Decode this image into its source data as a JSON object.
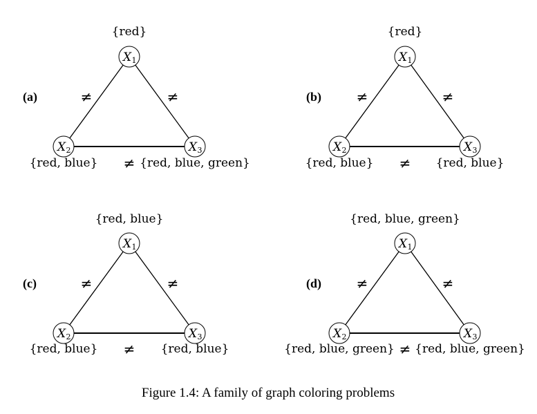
{
  "panels": [
    {
      "letter": "(a)",
      "nodes": [
        {
          "name": "X",
          "sub": "1",
          "domain": "{red}"
        },
        {
          "name": "X",
          "sub": "2",
          "domain": "{red, blue}"
        },
        {
          "name": "X",
          "sub": "3",
          "domain": "{red, blue, green}"
        }
      ]
    },
    {
      "letter": "(b)",
      "nodes": [
        {
          "name": "X",
          "sub": "1",
          "domain": "{red}"
        },
        {
          "name": "X",
          "sub": "2",
          "domain": "{red, blue}"
        },
        {
          "name": "X",
          "sub": "3",
          "domain": "{red, blue}"
        }
      ]
    },
    {
      "letter": "(c)",
      "nodes": [
        {
          "name": "X",
          "sub": "1",
          "domain": "{red, blue}"
        },
        {
          "name": "X",
          "sub": "2",
          "domain": "{red, blue}"
        },
        {
          "name": "X",
          "sub": "3",
          "domain": "{red, blue}"
        }
      ]
    },
    {
      "letter": "(d)",
      "nodes": [
        {
          "name": "X",
          "sub": "1",
          "domain": "{red, blue, green}"
        },
        {
          "name": "X",
          "sub": "2",
          "domain": "{red, blue, green}"
        },
        {
          "name": "X",
          "sub": "3",
          "domain": "{red, blue, green}"
        }
      ]
    }
  ],
  "neq_symbol": "≠",
  "caption": "Figure 1.4: A family of graph coloring problems"
}
